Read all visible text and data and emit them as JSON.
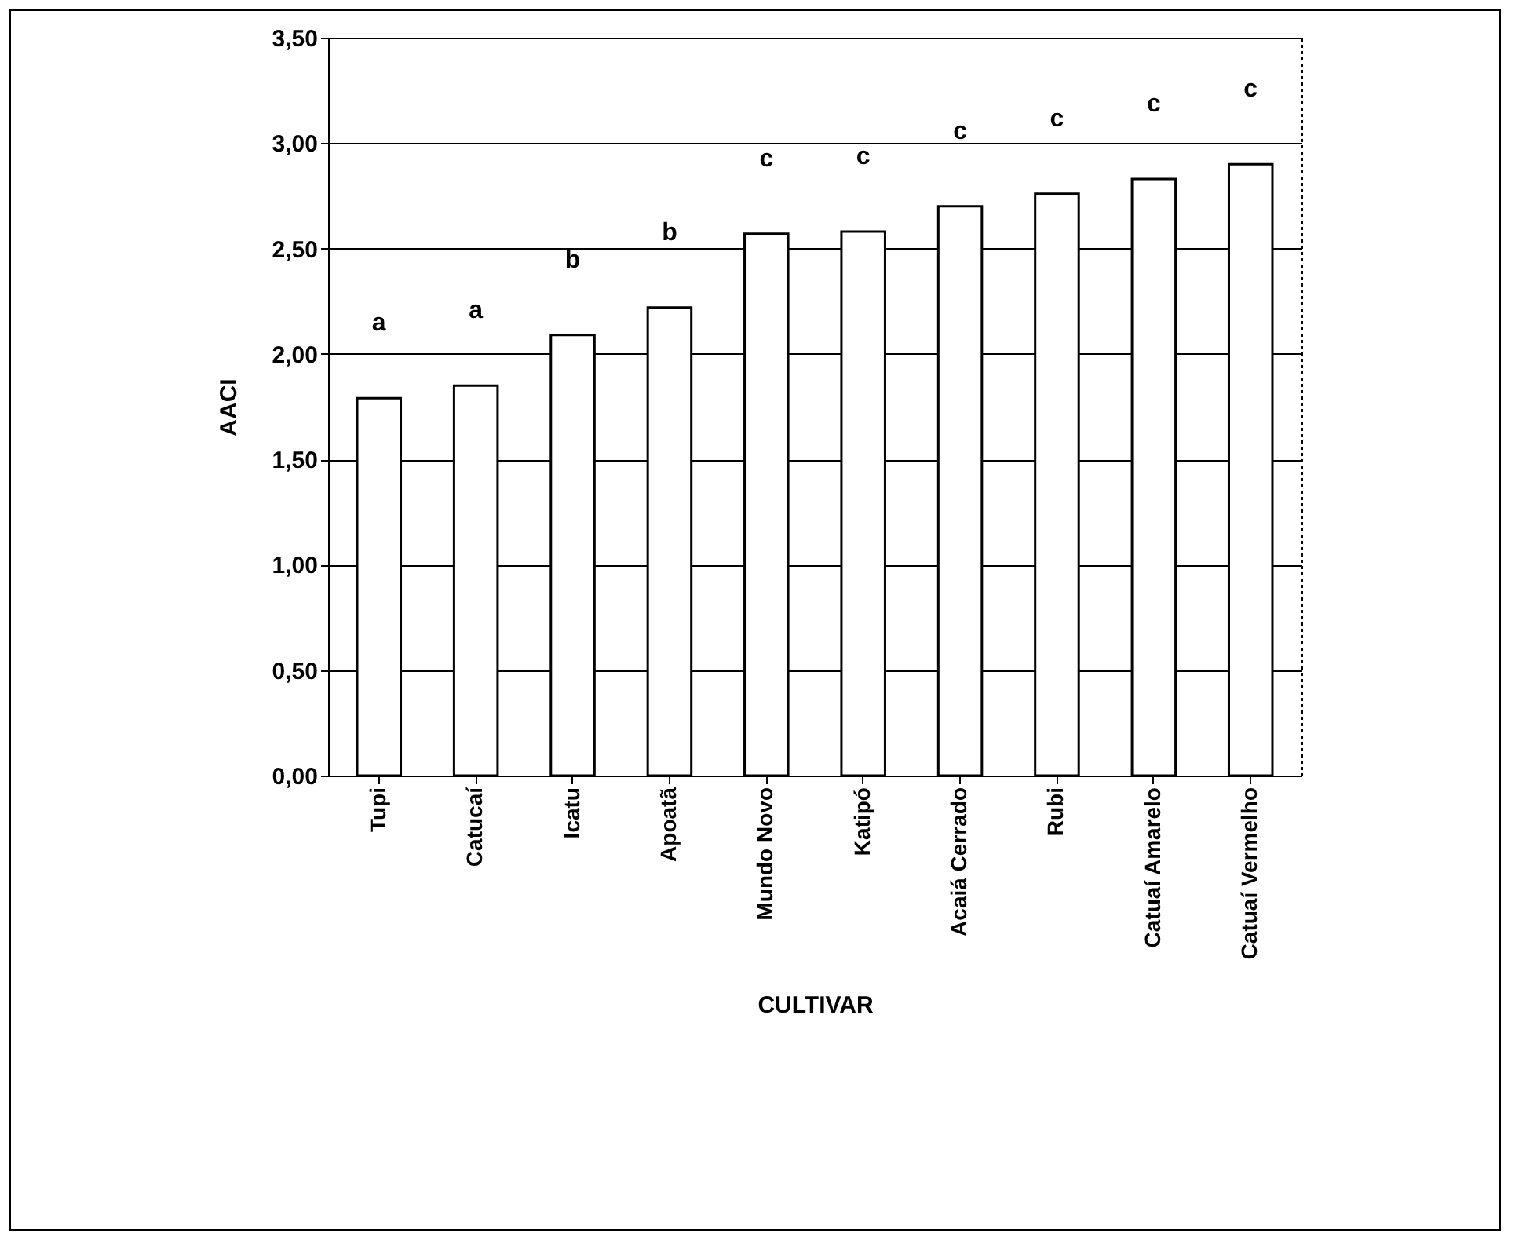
{
  "chart_data": {
    "type": "bar",
    "xlabel": "CULTIVAR",
    "ylabel": "AACI",
    "categories": [
      "Tupi",
      "Catucaí",
      "Icatu",
      "Apoatã",
      "Mundo Novo",
      "Katipó",
      "Acaiá Cerrado",
      "Rubi",
      "Catuaí Amarelo",
      "Catuaí Vermelho"
    ],
    "values": [
      1.79,
      1.85,
      2.09,
      2.22,
      2.57,
      2.58,
      2.7,
      2.76,
      2.83,
      2.9
    ],
    "color": "#ffffff",
    "ylim": [
      0,
      3.5
    ],
    "yticks": [
      {
        "value": 0,
        "label": "0,00"
      },
      {
        "value": 0.5,
        "label": "0,50"
      },
      {
        "value": 1,
        "label": "1,00"
      },
      {
        "value": 1.5,
        "label": "1,50"
      },
      {
        "value": 2,
        "label": "2,00"
      },
      {
        "value": 2.5,
        "label": "2,50"
      },
      {
        "value": 3,
        "label": "3,00"
      },
      {
        "value": 3.5,
        "label": "3,50"
      }
    ],
    "grid": "y",
    "annotations": [
      "a",
      "a",
      "b",
      "b",
      "c",
      "c",
      "c",
      "c",
      "c",
      "c"
    ]
  }
}
